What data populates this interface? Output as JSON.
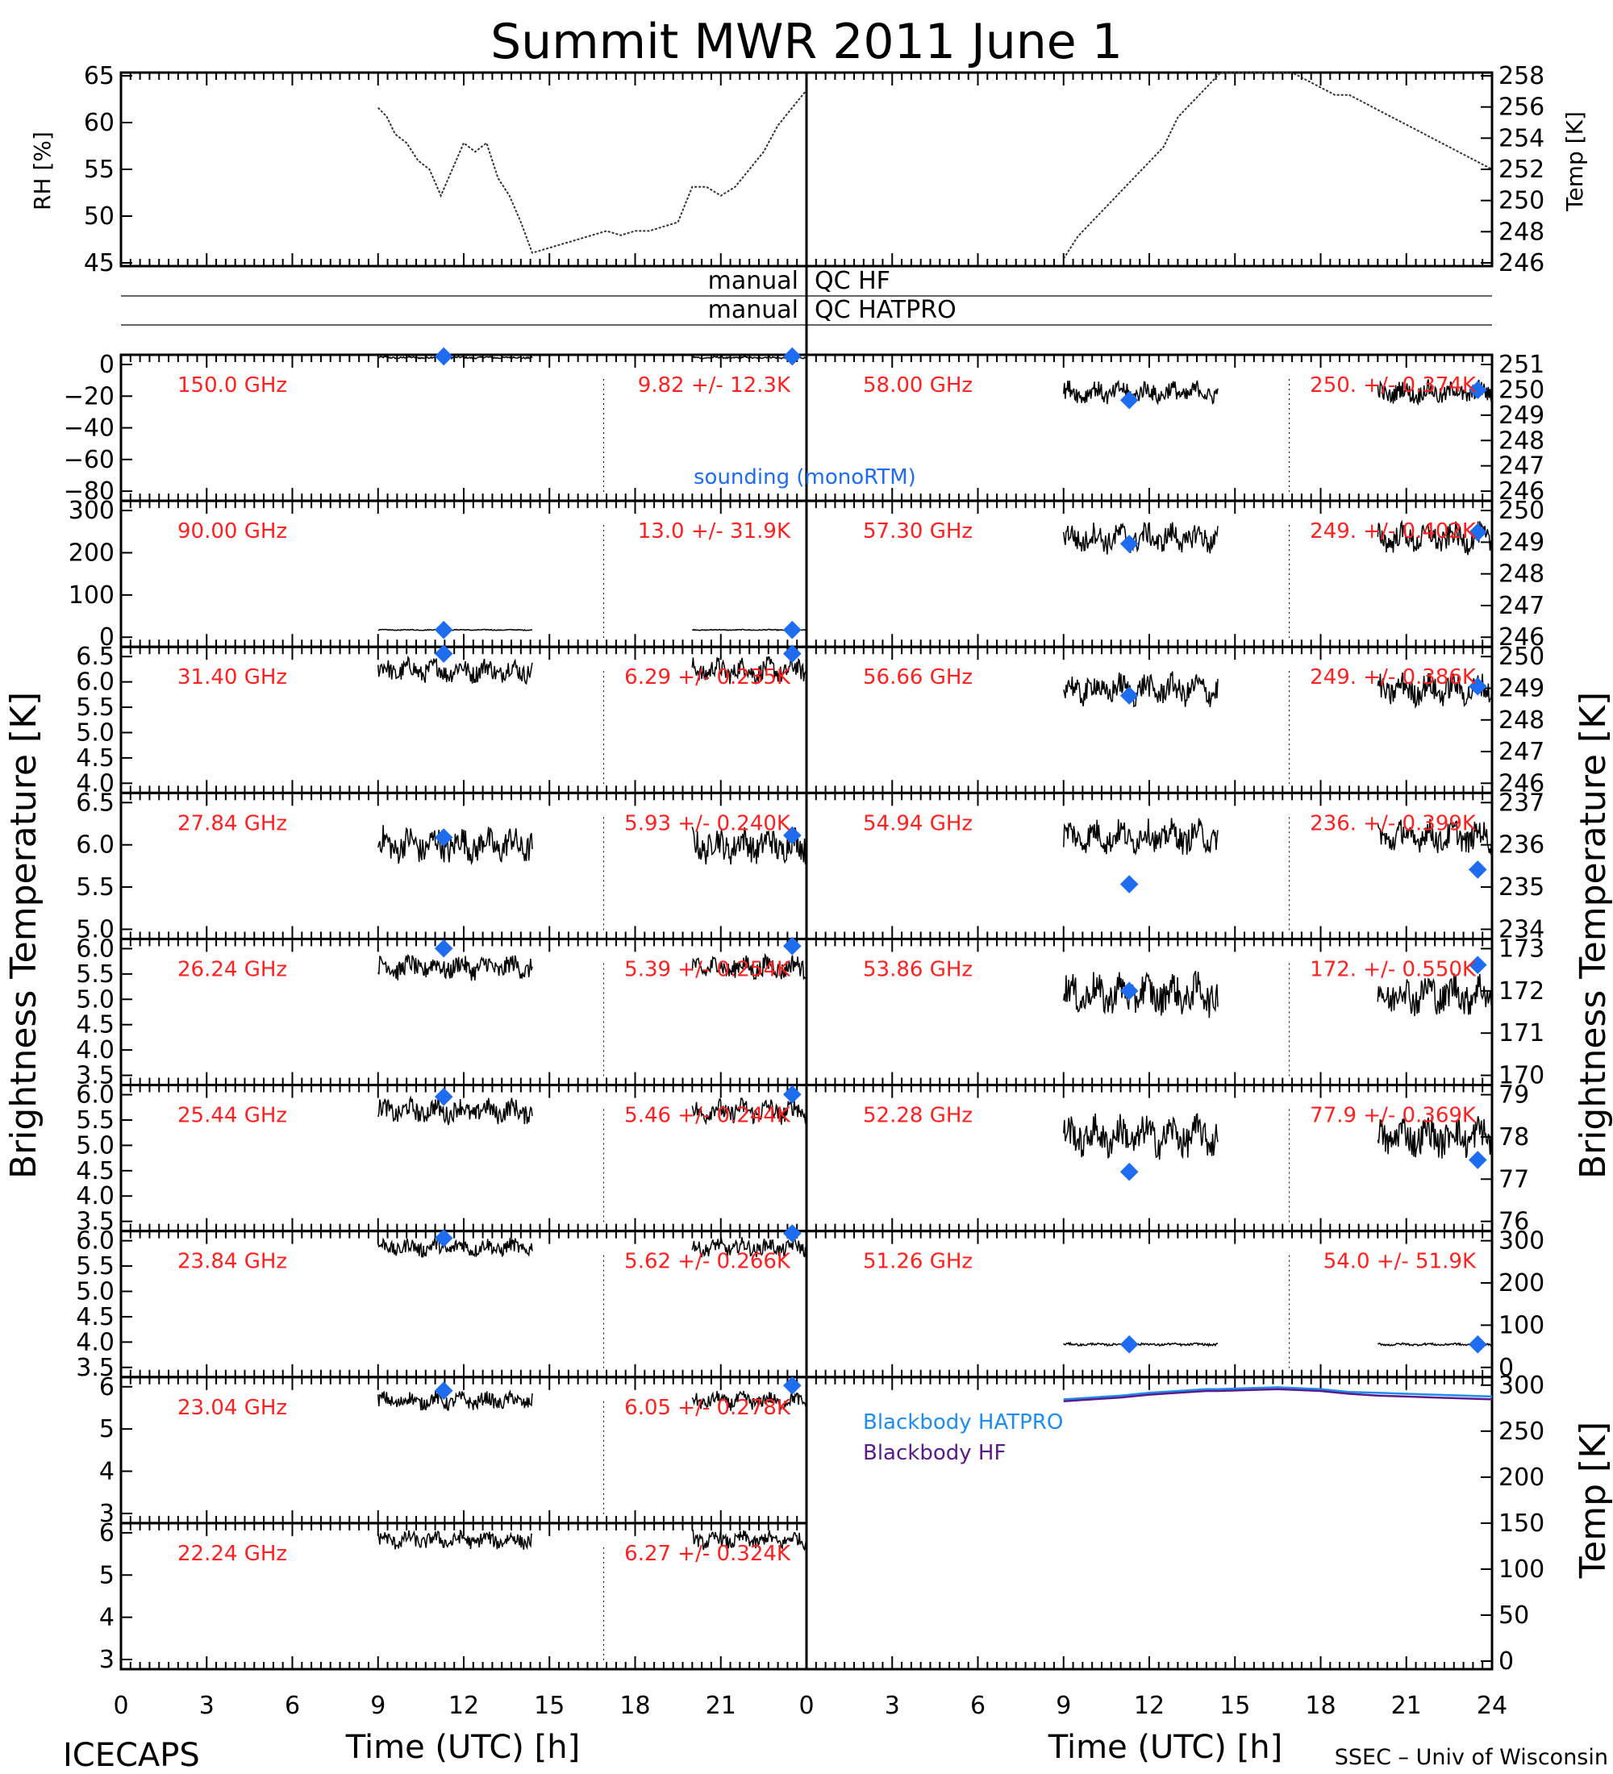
{
  "title": "Summit MWR 2011 June  1",
  "footer": {
    "left": "ICECAPS",
    "right": "SSEC – Univ of Wisconsin"
  },
  "top_panels": {
    "left_ylabel": "RH [%]",
    "left_ticks": [
      "65",
      "60",
      "55",
      "50",
      "45"
    ],
    "right_ylabel": "Temp [K]",
    "right_ticks": [
      "258",
      "256",
      "254",
      "252",
      "250",
      "248",
      "246"
    ]
  },
  "qc_rows": [
    {
      "left": "manual",
      "right": "QC  HF"
    },
    {
      "left": "manual",
      "right": "QC  HATPRO"
    }
  ],
  "left_ylabel": "Brightness Temperature [K]",
  "right_ylabel": "Brightness Temperature [K]",
  "temp_ylabel": "Temp [K]",
  "xlabel": "Time (UTC) [h]",
  "x_ticks_left": [
    "0",
    "3",
    "6",
    "9",
    "12",
    "15",
    "18",
    "21",
    "0"
  ],
  "x_ticks_right": [
    "3",
    "6",
    "9",
    "12",
    "15",
    "18",
    "21",
    "24"
  ],
  "sounding_label": "sounding (monoRTM)",
  "legend": {
    "hatpro": "Blackbody HATPRO",
    "hf": "Blackbody HF"
  },
  "colors": {
    "channel_text": "#ff2020",
    "sounding": "#1e6cf0",
    "hatpro": "#1e8cf0",
    "hf": "#5a1a8a"
  },
  "chart_data": [
    {
      "type": "scatter",
      "panel": "RH",
      "ylabel": "RH [%]",
      "ylim": [
        44,
        66
      ],
      "xlim": [
        0,
        24
      ],
      "series": [
        {
          "x": [
            9,
            9.3,
            9.6,
            10,
            10.4,
            10.8,
            11.2,
            11.6,
            12,
            12.4,
            12.8,
            13.2,
            13.6,
            14,
            14.4,
            17,
            17.5,
            18,
            18.5,
            19,
            19.5,
            20,
            20.5,
            21,
            21.5,
            22,
            22.5,
            23,
            23.5,
            24
          ],
          "y": [
            62,
            61,
            59,
            58,
            56,
            55,
            52,
            55,
            58,
            57,
            58,
            54,
            52,
            49,
            45.5,
            48,
            47.5,
            48,
            48,
            48.5,
            49,
            53,
            53,
            52,
            53,
            55,
            57,
            60,
            62,
            64
          ]
        }
      ]
    },
    {
      "type": "scatter",
      "panel": "Temp",
      "ylabel": "Temp [K]",
      "ylim": [
        245,
        258
      ],
      "xlim": [
        0,
        24
      ],
      "series": [
        {
          "x": [
            9,
            9.5,
            10,
            10.5,
            11,
            11.5,
            12,
            12.5,
            13,
            13.5,
            14,
            14.5,
            17,
            17.5,
            18,
            18.5,
            19,
            19.5,
            20,
            20.5,
            21,
            21.5,
            22,
            22.5,
            23,
            23.5,
            24
          ],
          "y": [
            245.5,
            247,
            248,
            249,
            250,
            251,
            252,
            253,
            255,
            256,
            257,
            258,
            258,
            257.5,
            257,
            256.5,
            256.5,
            256,
            255.5,
            255,
            254.5,
            254,
            253.5,
            253,
            252.5,
            252,
            251.5
          ]
        }
      ]
    },
    {
      "type": "scatter",
      "panel": "left",
      "channel": "150.0 GHz",
      "stats": "9.82 +/-  12.3K",
      "yticks": [
        "0",
        "−20",
        "−40",
        "−60",
        "−80"
      ],
      "ylim": [
        -95,
        10
      ],
      "level": 8,
      "noise": 0.6,
      "sounding": [
        [
          11.3,
          9.8
        ],
        [
          23.5,
          9.8
        ]
      ]
    },
    {
      "type": "scatter",
      "panel": "left",
      "channel": "90.00 GHz",
      "stats": "13.0 +/-  31.9K",
      "yticks": [
        "300",
        "200",
        "100",
        "0"
      ],
      "ylim": [
        -30,
        340
      ],
      "level": 13,
      "noise": 1.0,
      "sounding": [
        [
          11.3,
          13
        ],
        [
          23.5,
          13
        ]
      ]
    },
    {
      "type": "scatter",
      "panel": "left",
      "channel": "31.40 GHz",
      "stats": "6.29 +/-  0.235K",
      "yticks": [
        "6.5",
        "6.0",
        "5.5",
        "5.0",
        "4.5",
        "4.0"
      ],
      "ylim": [
        3.95,
        6.75
      ],
      "level": 6.3,
      "noise": 0.18,
      "sounding": [
        [
          11.3,
          6.62
        ],
        [
          23.5,
          6.62
        ]
      ]
    },
    {
      "type": "scatter",
      "panel": "left",
      "channel": "27.84 GHz",
      "stats": "5.93 +/-  0.240K",
      "yticks": [
        "6.5",
        "6.0",
        "5.5",
        "5.0"
      ],
      "ylim": [
        4.5,
        6.6
      ],
      "level": 5.85,
      "noise": 0.2,
      "sounding": [
        [
          11.3,
          5.96
        ],
        [
          23.5,
          5.99
        ]
      ]
    },
    {
      "type": "scatter",
      "panel": "left",
      "channel": "26.24 GHz",
      "stats": "5.39 +/-  0.254K",
      "yticks": [
        "6.0",
        "5.5",
        "5.0",
        "4.5",
        "4.0",
        "3.5"
      ],
      "ylim": [
        3.0,
        6.1
      ],
      "level": 5.5,
      "noise": 0.2,
      "sounding": [
        [
          11.3,
          5.9
        ],
        [
          23.5,
          5.95
        ]
      ]
    },
    {
      "type": "scatter",
      "panel": "left",
      "channel": "25.44 GHz",
      "stats": "5.46 +/-  0.244K",
      "yticks": [
        "6.0",
        "5.5",
        "5.0",
        "4.5",
        "4.0",
        "3.5"
      ],
      "ylim": [
        3.0,
        6.1
      ],
      "level": 5.55,
      "noise": 0.2,
      "sounding": [
        [
          11.3,
          5.85
        ],
        [
          23.5,
          5.9
        ]
      ]
    },
    {
      "type": "scatter",
      "panel": "left",
      "channel": "23.84 GHz",
      "stats": "5.62 +/-  0.266K",
      "yticks": [
        "6.0",
        "5.5",
        "5.0",
        "4.5",
        "4.0",
        "3.5"
      ],
      "ylim": [
        3.0,
        6.1
      ],
      "level": 5.75,
      "noise": 0.15,
      "sounding": [
        [
          11.3,
          5.95
        ],
        [
          23.5,
          6.05
        ]
      ]
    },
    {
      "type": "scatter",
      "panel": "left",
      "channel": "23.04 GHz",
      "stats": "6.05 +/-  0.278K",
      "yticks": [
        "6",
        "5",
        "4",
        "3"
      ],
      "ylim": [
        2.5,
        6.8
      ],
      "level": 6.1,
      "noise": 0.2,
      "sounding": [
        [
          11.3,
          6.4
        ],
        [
          23.5,
          6.55
        ]
      ]
    },
    {
      "type": "scatter",
      "panel": "left",
      "channel": "22.24 GHz",
      "stats": "6.27 +/-  0.324K",
      "yticks": [
        "6",
        "5",
        "4",
        "3"
      ],
      "ylim": [
        2.5,
        6.8
      ],
      "level": 6.3,
      "noise": 0.2,
      "sounding": []
    },
    {
      "type": "scatter",
      "panel": "right",
      "channel": "58.00 GHz",
      "stats": "250. +/-  0.374K",
      "yticks": [
        "251",
        "250",
        "249",
        "248",
        "247",
        "246"
      ],
      "ylim": [
        245.5,
        251.3
      ],
      "level": 249.8,
      "noise": 0.35,
      "sounding": [
        [
          11.3,
          249.5
        ],
        [
          23.5,
          249.9
        ]
      ]
    },
    {
      "type": "scatter",
      "panel": "right",
      "channel": "57.30 GHz",
      "stats": "249. +/-  0.402K",
      "yticks": [
        "250",
        "249",
        "248",
        "247",
        "246"
      ],
      "ylim": [
        245.5,
        250.6
      ],
      "level": 249.3,
      "noise": 0.4,
      "sounding": [
        [
          11.3,
          249.1
        ],
        [
          23.5,
          249.5
        ]
      ]
    },
    {
      "type": "scatter",
      "panel": "right",
      "channel": "56.66 GHz",
      "stats": "249. +/-  0.386K",
      "yticks": [
        "250",
        "249",
        "248",
        "247",
        "246"
      ],
      "ylim": [
        245.5,
        250.3
      ],
      "level": 248.9,
      "noise": 0.4,
      "sounding": [
        [
          11.3,
          248.7
        ],
        [
          23.5,
          249.0
        ]
      ]
    },
    {
      "type": "scatter",
      "panel": "right",
      "channel": "54.94 GHz",
      "stats": "236. +/-  0.399K",
      "yticks": [
        "237",
        "236",
        "235",
        "234"
      ],
      "ylim": [
        233.2,
        237.2
      ],
      "level": 236.0,
      "noise": 0.35,
      "sounding": [
        [
          11.3,
          234.7
        ],
        [
          23.5,
          235.1
        ]
      ]
    },
    {
      "type": "scatter",
      "panel": "right",
      "channel": "53.86 GHz",
      "stats": "172. +/-  0.550K",
      "yticks": [
        "173",
        "172",
        "171",
        "170"
      ],
      "ylim": [
        169.9,
        174.4
      ],
      "level": 172.7,
      "noise": 0.5,
      "sounding": [
        [
          11.3,
          172.8
        ],
        [
          23.5,
          173.6
        ]
      ]
    },
    {
      "type": "scatter",
      "panel": "right",
      "channel": "52.28 GHz",
      "stats": "77.9 +/-  0.369K",
      "yticks": [
        "79",
        "78",
        "77",
        "76"
      ],
      "ylim": [
        75.5,
        79.2
      ],
      "level": 77.9,
      "noise": 0.4,
      "sounding": [
        [
          11.3,
          77.0
        ],
        [
          23.5,
          77.3
        ]
      ]
    },
    {
      "type": "scatter",
      "panel": "right",
      "channel": "51.26 GHz",
      "stats": "54.0 +/-  51.9K",
      "yticks": [
        "300",
        "200",
        "100",
        "0"
      ],
      "ylim": [
        -40,
        380
      ],
      "level": 54,
      "noise": 3,
      "sounding": [
        [
          11.3,
          54
        ],
        [
          23.5,
          54
        ]
      ]
    },
    {
      "type": "line",
      "panel": "blackbody",
      "ylabel": "Temp [K]",
      "yticks": [
        "300",
        "250",
        "200",
        "150",
        "100",
        "50",
        "0"
      ],
      "ylim": [
        0,
        300
      ],
      "series": [
        {
          "name": "Blackbody HATPRO",
          "x": [
            9,
            10,
            11,
            12,
            13,
            14,
            14.4,
            16.5,
            18,
            19,
            20,
            21,
            22,
            23,
            24
          ],
          "y": [
            283,
            285,
            287,
            290,
            292,
            294,
            294,
            296,
            294,
            291,
            290,
            289,
            288,
            287,
            286
          ]
        },
        {
          "name": "Blackbody HF",
          "x": [
            9,
            10,
            11,
            12,
            13,
            14,
            14.4,
            16.5,
            18,
            19,
            20,
            21,
            22,
            23,
            24
          ],
          "y": [
            281,
            283,
            285,
            288,
            290,
            292,
            292,
            294,
            292,
            289,
            287,
            286,
            285,
            284,
            283
          ]
        }
      ]
    }
  ]
}
